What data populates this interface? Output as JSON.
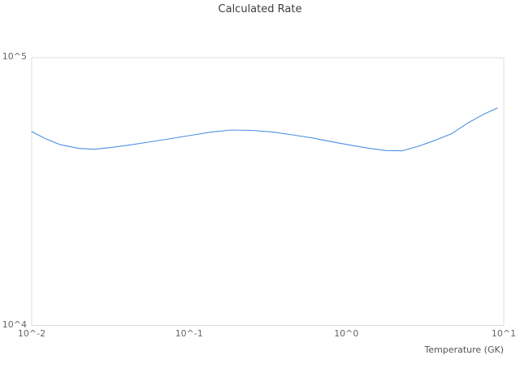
{
  "chart_data": {
    "type": "line",
    "title": "Calculated Rate",
    "xlabel": "Temperature (GK)",
    "ylabel": "",
    "x_scale": "log",
    "y_scale": "log",
    "x_log_range": [
      -2,
      1
    ],
    "y_log_range": [
      4,
      5
    ],
    "xlim": [
      0.01,
      10
    ],
    "ylim": [
      10000,
      100000
    ],
    "grid": "outer border only, no interior gridlines",
    "legend_position": "none",
    "border_color": "#dcdcdc",
    "line_color": "#4a90e2",
    "x_ticks": [
      {
        "label": "10^-2",
        "value": 0.01
      },
      {
        "label": "10^-1",
        "value": 0.1
      },
      {
        "label": "10^0",
        "value": 1
      },
      {
        "label": "10^1",
        "value": 10
      }
    ],
    "y_ticks": [
      {
        "label": "10^5",
        "value": 100000
      },
      {
        "label": "10^4",
        "value": 10000
      }
    ],
    "series": [
      {
        "name": "calculated-rate",
        "x": [
          0.01,
          0.012,
          0.015,
          0.02,
          0.025,
          0.031,
          0.042,
          0.057,
          0.077,
          0.103,
          0.139,
          0.187,
          0.251,
          0.338,
          0.455,
          0.613,
          0.824,
          1.11,
          1.41,
          1.79,
          2.26,
          2.87,
          3.64,
          4.62,
          5.86,
          7.43,
          9.1
        ],
        "y": [
          53000,
          50100,
          47400,
          45800,
          45500,
          46100,
          47200,
          48500,
          49900,
          51300,
          52800,
          53700,
          53500,
          52800,
          51500,
          50100,
          48400,
          46900,
          45800,
          45000,
          44900,
          46700,
          49100,
          51900,
          56800,
          61400,
          64900
        ]
      }
    ]
  }
}
